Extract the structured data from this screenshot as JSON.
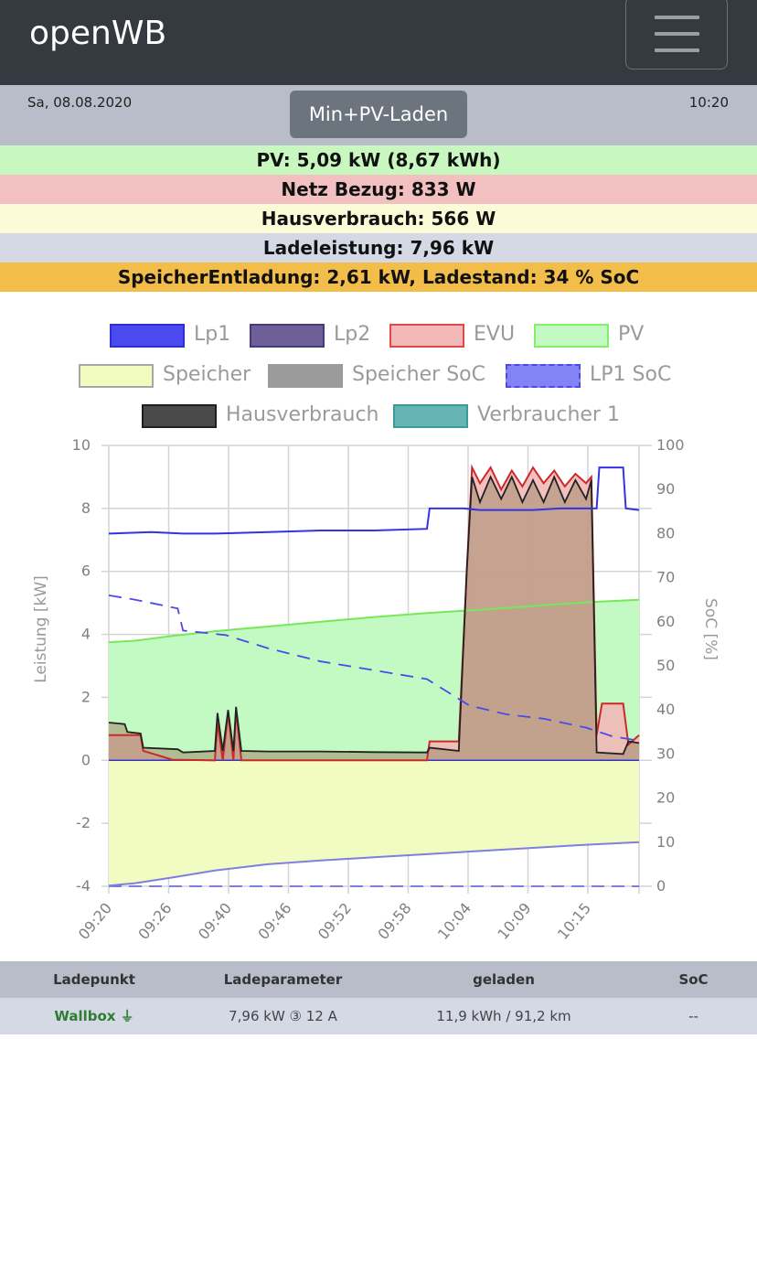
{
  "app": {
    "title": "openWB"
  },
  "status": {
    "date": "Sa, 08.08.2020",
    "time": "10:20",
    "mode_button": "Min+PV-Laden"
  },
  "info_rows": [
    {
      "text": "PV: 5,09 kW (8,67 kWh)",
      "color": "#c8f7c0"
    },
    {
      "text": "Netz Bezug: 833 W",
      "color": "#f2c0c0"
    },
    {
      "text": "Hausverbrauch: 566 W",
      "color": "#fbfbd8"
    },
    {
      "text": "Ladeleistung: 7,96 kW",
      "color": "#d5d9e6"
    },
    {
      "text": "SpeicherEntladung: 2,61 kW, Ladestand: 34 % SoC",
      "color": "#f2bd48"
    }
  ],
  "legend": [
    {
      "label": "Lp1",
      "fill": "#4a4af0",
      "border": "#2f2fd0",
      "dashed": false
    },
    {
      "label": "Lp2",
      "fill": "#6f5f99",
      "border": "#47397a",
      "dashed": false
    },
    {
      "label": "EVU",
      "fill": "#f2b8b8",
      "border": "#e04848",
      "dashed": false
    },
    {
      "label": "PV",
      "fill": "#c3f9c3",
      "border": "#83ee6a",
      "dashed": false
    },
    {
      "label": "Speicher",
      "fill": "#f2fbc2",
      "border": "#a8a8a0",
      "dashed": false
    },
    {
      "label": "Speicher SoC",
      "fill": "#9b9b9b",
      "border": "#9b9b9b",
      "dashed": true
    },
    {
      "label": "LP1 SoC",
      "fill": "#8383f5",
      "border": "#4a4ae8",
      "dashed": true
    },
    {
      "label": "Hausverbrauch",
      "fill": "#4a4a4a",
      "border": "#1f1f1f",
      "dashed": false
    },
    {
      "label": "Verbraucher 1",
      "fill": "#66b4b4",
      "border": "#3e9a9a",
      "dashed": false
    }
  ],
  "chart_data": {
    "type": "area",
    "title": "",
    "ylabel": "Leistung [kW]",
    "y2label": "SoC [%]",
    "ylim": [
      -4,
      10
    ],
    "y2lim": [
      0,
      100
    ],
    "yticks": [
      "10",
      "8",
      "6",
      "4",
      "2",
      "0",
      "-2",
      "-4"
    ],
    "y2ticks": [
      "100",
      "90",
      "80",
      "70",
      "60",
      "50",
      "40",
      "30",
      "20",
      "10",
      "0"
    ],
    "xticks": [
      "09:20",
      "09:26",
      "09:40",
      "09:46",
      "09:52",
      "09:58",
      "10:04",
      "10:09",
      "10:15"
    ],
    "grid": true,
    "series": [
      {
        "name": "Lp1",
        "color": "#3333e0",
        "axis": "kW",
        "points": [
          [
            0,
            7.2
          ],
          [
            0.08,
            7.25
          ],
          [
            0.14,
            7.2
          ],
          [
            0.2,
            7.2
          ],
          [
            0.3,
            7.25
          ],
          [
            0.4,
            7.3
          ],
          [
            0.5,
            7.3
          ],
          [
            0.6,
            7.35
          ],
          [
            0.605,
            8.0
          ],
          [
            0.67,
            8.0
          ],
          [
            0.7,
            7.95
          ],
          [
            0.8,
            7.95
          ],
          [
            0.85,
            8.0
          ],
          [
            0.92,
            8.0
          ],
          [
            0.925,
            9.3
          ],
          [
            0.97,
            9.3
          ],
          [
            0.975,
            8.0
          ],
          [
            1.0,
            7.95
          ]
        ]
      },
      {
        "name": "PV",
        "color": "#77e85a",
        "fill": "#c3f9c3",
        "axis": "kW",
        "points": [
          [
            0,
            3.75
          ],
          [
            0.05,
            3.8
          ],
          [
            0.12,
            3.95
          ],
          [
            0.2,
            4.1
          ],
          [
            0.3,
            4.25
          ],
          [
            0.4,
            4.4
          ],
          [
            0.5,
            4.55
          ],
          [
            0.6,
            4.68
          ],
          [
            0.7,
            4.78
          ],
          [
            0.8,
            4.9
          ],
          [
            0.9,
            5.02
          ],
          [
            1.0,
            5.1
          ]
        ]
      },
      {
        "name": "EVU",
        "color": "#cc2a2a",
        "fill": "#f2b8b8",
        "axis": "kW",
        "points": [
          [
            0,
            0.8
          ],
          [
            0.06,
            0.8
          ],
          [
            0.065,
            0.3
          ],
          [
            0.12,
            0.02
          ],
          [
            0.2,
            0.0
          ],
          [
            0.205,
            1.2
          ],
          [
            0.215,
            0.0
          ],
          [
            0.225,
            1.5
          ],
          [
            0.235,
            0.0
          ],
          [
            0.24,
            1.6
          ],
          [
            0.25,
            0.0
          ],
          [
            0.3,
            0.0
          ],
          [
            0.4,
            0.0
          ],
          [
            0.5,
            0.0
          ],
          [
            0.6,
            0.0
          ],
          [
            0.605,
            0.6
          ],
          [
            0.66,
            0.6
          ],
          [
            0.675,
            6.0
          ],
          [
            0.685,
            9.3
          ],
          [
            0.7,
            8.8
          ],
          [
            0.72,
            9.3
          ],
          [
            0.74,
            8.6
          ],
          [
            0.76,
            9.2
          ],
          [
            0.78,
            8.7
          ],
          [
            0.8,
            9.3
          ],
          [
            0.82,
            8.8
          ],
          [
            0.84,
            9.2
          ],
          [
            0.86,
            8.7
          ],
          [
            0.88,
            9.1
          ],
          [
            0.9,
            8.8
          ],
          [
            0.91,
            9.0
          ],
          [
            0.92,
            0.8
          ],
          [
            0.93,
            1.8
          ],
          [
            0.97,
            1.8
          ],
          [
            0.98,
            0.5
          ],
          [
            1.0,
            0.8
          ]
        ]
      },
      {
        "name": "Hausverbrauch",
        "color": "#222222",
        "axis": "kW",
        "points": [
          [
            0,
            1.2
          ],
          [
            0.03,
            1.15
          ],
          [
            0.035,
            0.9
          ],
          [
            0.06,
            0.85
          ],
          [
            0.065,
            0.4
          ],
          [
            0.13,
            0.35
          ],
          [
            0.14,
            0.25
          ],
          [
            0.2,
            0.3
          ],
          [
            0.205,
            1.5
          ],
          [
            0.215,
            0.3
          ],
          [
            0.225,
            1.6
          ],
          [
            0.235,
            0.3
          ],
          [
            0.24,
            1.7
          ],
          [
            0.25,
            0.3
          ],
          [
            0.3,
            0.28
          ],
          [
            0.4,
            0.28
          ],
          [
            0.5,
            0.26
          ],
          [
            0.6,
            0.25
          ],
          [
            0.605,
            0.4
          ],
          [
            0.66,
            0.3
          ],
          [
            0.675,
            6.0
          ],
          [
            0.685,
            9.0
          ],
          [
            0.7,
            8.2
          ],
          [
            0.72,
            9.0
          ],
          [
            0.74,
            8.3
          ],
          [
            0.76,
            9.0
          ],
          [
            0.78,
            8.2
          ],
          [
            0.8,
            8.9
          ],
          [
            0.82,
            8.2
          ],
          [
            0.84,
            9.0
          ],
          [
            0.86,
            8.2
          ],
          [
            0.88,
            8.9
          ],
          [
            0.9,
            8.3
          ],
          [
            0.91,
            8.9
          ],
          [
            0.92,
            0.25
          ],
          [
            0.97,
            0.2
          ],
          [
            0.98,
            0.6
          ],
          [
            1.0,
            0.55
          ]
        ]
      },
      {
        "name": "Speicher",
        "color": "#7f7fe0",
        "fill": "#f2fbc2",
        "axis": "kW",
        "points": [
          [
            0,
            -3.98
          ],
          [
            0.05,
            -3.9
          ],
          [
            0.12,
            -3.72
          ],
          [
            0.2,
            -3.5
          ],
          [
            0.3,
            -3.3
          ],
          [
            0.4,
            -3.18
          ],
          [
            0.5,
            -3.08
          ],
          [
            0.6,
            -2.98
          ],
          [
            0.7,
            -2.88
          ],
          [
            0.8,
            -2.78
          ],
          [
            0.9,
            -2.68
          ],
          [
            1.0,
            -2.6
          ]
        ]
      },
      {
        "name": "LP1 SoC",
        "color": "#4a4ae8",
        "axis": "soc",
        "dashed": true,
        "points": [
          [
            0,
            66
          ],
          [
            0.05,
            65
          ],
          [
            0.13,
            63
          ],
          [
            0.14,
            58
          ],
          [
            0.22,
            57
          ],
          [
            0.3,
            54
          ],
          [
            0.4,
            51
          ],
          [
            0.5,
            49
          ],
          [
            0.6,
            47
          ],
          [
            0.68,
            41
          ],
          [
            0.75,
            39
          ],
          [
            0.82,
            38
          ],
          [
            0.9,
            36
          ],
          [
            0.95,
            34
          ],
          [
            1.0,
            33
          ]
        ]
      }
    ]
  },
  "table": {
    "headers": [
      "Ladepunkt",
      "Ladeparameter",
      "geladen",
      "SoC"
    ],
    "rows": [
      {
        "ladepunkt": "Wallbox ⏚",
        "parameter": "7,96 kW ③ 12 A",
        "geladen": "11,9 kWh / 91,2 km",
        "soc": "--"
      }
    ]
  }
}
